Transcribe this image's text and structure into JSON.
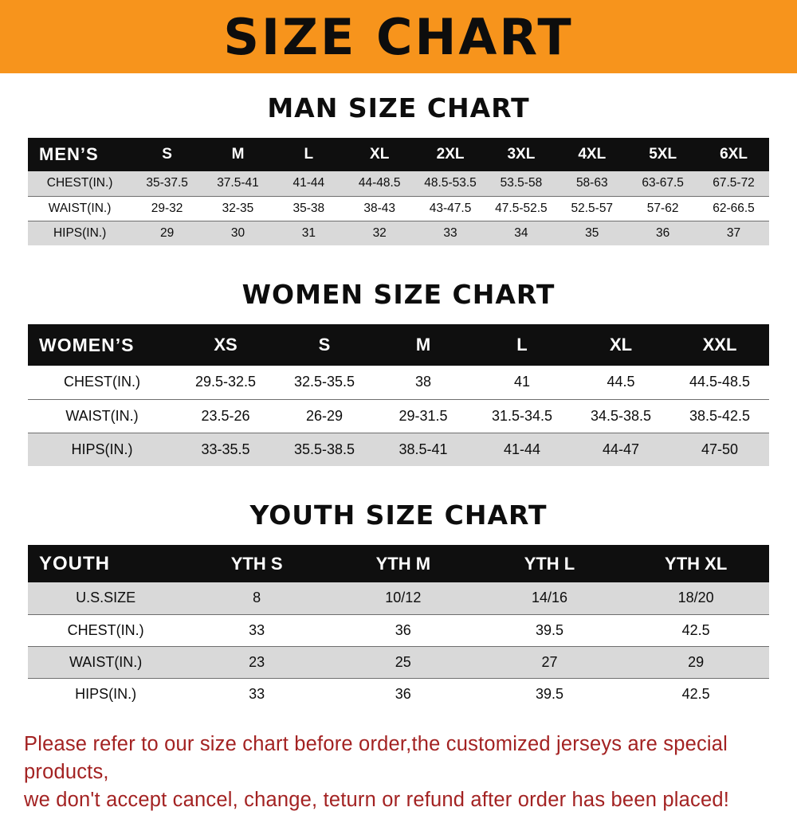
{
  "page_title": "SIZE CHART",
  "colors": {
    "banner_orange": "#F7941C",
    "table_header_black": "#0F0F0F",
    "row_grey": "#D9D9D9",
    "footer_red": "#A32222",
    "text_black": "#0D0D0D"
  },
  "footer": {
    "line1": "Please refer to our size chart before order,the customized jerseys are special products,",
    "line2": "we don't accept cancel, change, teturn or refund after order has been placed!"
  },
  "chart_data": [
    {
      "type": "table",
      "title": "MAN SIZE CHART",
      "columns": [
        "MEN’S",
        "S",
        "M",
        "L",
        "XL",
        "2XL",
        "3XL",
        "4XL",
        "5XL",
        "6XL"
      ],
      "rows": [
        [
          "CHEST(IN.)",
          "35-37.5",
          "37.5-41",
          "41-44",
          "44-48.5",
          "48.5-53.5",
          "53.5-58",
          "58-63",
          "63-67.5",
          "67.5-72"
        ],
        [
          "WAIST(IN.)",
          "29-32",
          "32-35",
          "35-38",
          "38-43",
          "43-47.5",
          "47.5-52.5",
          "52.5-57",
          "57-62",
          "62-66.5"
        ],
        [
          "HIPS(IN.)",
          "29",
          "30",
          "31",
          "32",
          "33",
          "34",
          "35",
          "36",
          "37"
        ]
      ],
      "row_shading": [
        "grey",
        "white",
        "grey"
      ]
    },
    {
      "type": "table",
      "title": "WOMEN SIZE CHART",
      "columns": [
        "WOMEN’S",
        "XS",
        "S",
        "M",
        "L",
        "XL",
        "XXL"
      ],
      "rows": [
        [
          "CHEST(IN.)",
          "29.5-32.5",
          "32.5-35.5",
          "38",
          "41",
          "44.5",
          "44.5-48.5"
        ],
        [
          "WAIST(IN.)",
          "23.5-26",
          "26-29",
          "29-31.5",
          "31.5-34.5",
          "34.5-38.5",
          "38.5-42.5"
        ],
        [
          "HIPS(IN.)",
          "33-35.5",
          "35.5-38.5",
          "38.5-41",
          "41-44",
          "44-47",
          "47-50"
        ]
      ],
      "row_shading": [
        "white",
        "white",
        "grey"
      ]
    },
    {
      "type": "table",
      "title": "YOUTH SIZE CHART",
      "columns": [
        "YOUTH",
        "YTH S",
        "YTH M",
        "YTH L",
        "YTH XL"
      ],
      "rows": [
        [
          "U.S.SIZE",
          "8",
          "10/12",
          "14/16",
          "18/20"
        ],
        [
          "CHEST(IN.)",
          "33",
          "36",
          "39.5",
          "42.5"
        ],
        [
          "WAIST(IN.)",
          "23",
          "25",
          "27",
          "29"
        ],
        [
          "HIPS(IN.)",
          "33",
          "36",
          "39.5",
          "42.5"
        ]
      ],
      "row_shading": [
        "grey",
        "white",
        "grey",
        "white"
      ]
    }
  ]
}
